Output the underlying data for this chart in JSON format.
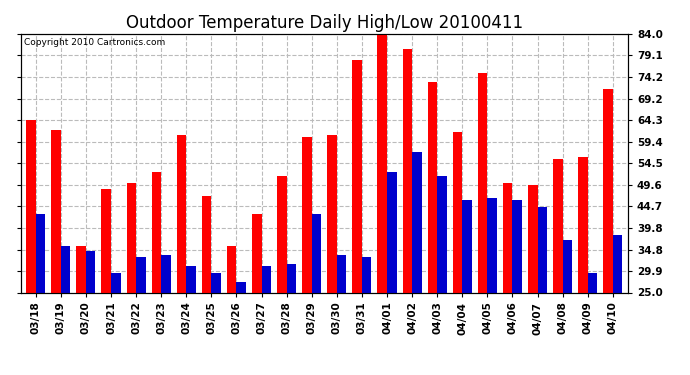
{
  "title": "Outdoor Temperature Daily High/Low 20100411",
  "copyright": "Copyright 2010 Cartronics.com",
  "dates": [
    "03/18",
    "03/19",
    "03/20",
    "03/21",
    "03/22",
    "03/23",
    "03/24",
    "03/25",
    "03/26",
    "03/27",
    "03/28",
    "03/29",
    "03/30",
    "03/31",
    "04/01",
    "04/02",
    "04/03",
    "04/04",
    "04/05",
    "04/06",
    "04/07",
    "04/08",
    "04/09",
    "04/10"
  ],
  "highs": [
    64.3,
    62.0,
    35.5,
    48.5,
    50.0,
    52.5,
    61.0,
    47.0,
    35.5,
    43.0,
    51.5,
    60.5,
    61.0,
    78.0,
    84.0,
    80.5,
    73.0,
    61.5,
    75.0,
    50.0,
    49.5,
    55.5,
    56.0,
    71.5
  ],
  "lows": [
    43.0,
    35.5,
    34.5,
    29.5,
    33.0,
    33.5,
    31.0,
    29.5,
    27.5,
    31.0,
    31.5,
    43.0,
    33.5,
    33.0,
    52.5,
    57.0,
    51.5,
    46.0,
    46.5,
    46.0,
    44.5,
    37.0,
    29.5,
    38.0
  ],
  "high_color": "#ff0000",
  "low_color": "#0000cc",
  "background_color": "#ffffff",
  "plot_bg_color": "#ffffff",
  "grid_color": "#bbbbbb",
  "y_min": 25.0,
  "y_max": 84.0,
  "yticks": [
    25.0,
    29.9,
    34.8,
    39.8,
    44.7,
    49.6,
    54.5,
    59.4,
    64.3,
    69.2,
    74.2,
    79.1,
    84.0
  ],
  "bar_width": 0.38,
  "title_fontsize": 12,
  "tick_fontsize": 7.5,
  "copyright_fontsize": 6.5
}
